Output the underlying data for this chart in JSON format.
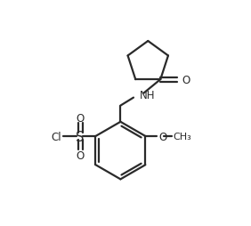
{
  "background_color": "#ffffff",
  "line_color": "#2a2a2a",
  "line_width": 1.6,
  "text_color": "#2a2a2a",
  "font_size": 8.5,
  "fig_width": 2.82,
  "fig_height": 2.54,
  "dpi": 100,
  "xlim": [
    0,
    10
  ],
  "ylim": [
    0,
    9
  ]
}
